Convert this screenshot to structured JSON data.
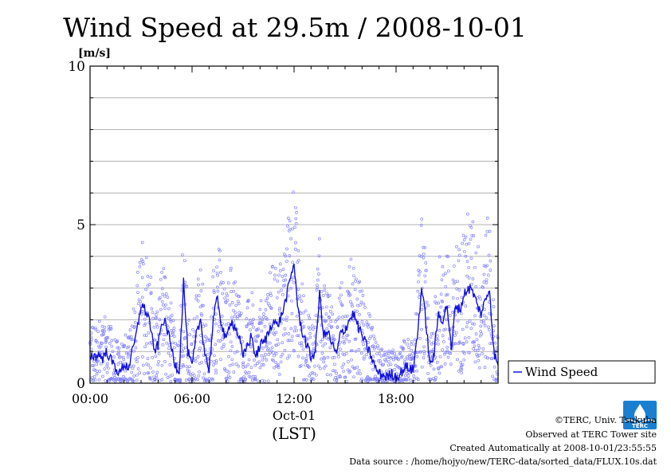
{
  "chart_data": {
    "type": "line",
    "title": "Wind Speed at 29.5m / 2008-10-01",
    "ylabel": "[m/s]",
    "xlabel_date": "Oct-01",
    "xlabel_unit": "(LST)",
    "ylim": [
      0,
      10
    ],
    "xlim_hours": [
      0,
      24
    ],
    "y_ticks": [
      0,
      5,
      10
    ],
    "y_tick_labels": [
      "0",
      "5",
      "10"
    ],
    "x_ticks_hours": [
      0,
      6,
      12,
      18
    ],
    "x_tick_labels": [
      "00:00",
      "06:00",
      "12:00",
      "18:00"
    ],
    "grid": "horizontal every 1 m/s",
    "legend_position": "right",
    "series": [
      {
        "name": "Wind Speed",
        "color": "#1010e0",
        "scatter_color": "#8080ff",
        "x_hours": [
          0.0,
          0.25,
          0.5,
          0.75,
          1.0,
          1.25,
          1.5,
          1.75,
          2.0,
          2.25,
          2.5,
          2.75,
          3.0,
          3.25,
          3.5,
          3.75,
          4.0,
          4.25,
          4.5,
          4.75,
          5.0,
          5.25,
          5.5,
          5.75,
          6.0,
          6.25,
          6.5,
          6.75,
          7.0,
          7.25,
          7.5,
          7.75,
          8.0,
          8.25,
          8.5,
          8.75,
          9.0,
          9.25,
          9.5,
          9.75,
          10.0,
          10.25,
          10.5,
          10.75,
          11.0,
          11.25,
          11.5,
          11.75,
          12.0,
          12.25,
          12.5,
          12.75,
          13.0,
          13.25,
          13.5,
          13.75,
          14.0,
          14.25,
          14.5,
          14.75,
          15.0,
          15.25,
          15.5,
          15.75,
          16.0,
          16.25,
          16.5,
          16.75,
          17.0,
          17.25,
          17.5,
          17.75,
          18.0,
          18.25,
          18.5,
          18.75,
          19.0,
          19.25,
          19.5,
          19.75,
          20.0,
          20.25,
          20.5,
          20.75,
          21.0,
          21.25,
          21.5,
          21.75,
          22.0,
          22.25,
          22.5,
          22.75,
          23.0,
          23.25,
          23.5,
          23.75,
          24.0
        ],
        "values": [
          0.9,
          0.85,
          0.9,
          0.8,
          1.0,
          0.7,
          0.5,
          0.3,
          0.6,
          0.5,
          1.0,
          1.6,
          2.5,
          2.3,
          2.0,
          1.0,
          1.2,
          2.0,
          1.8,
          1.2,
          0.6,
          0.4,
          3.2,
          1.0,
          0.5,
          1.5,
          2.0,
          1.0,
          0.4,
          2.0,
          2.7,
          1.8,
          1.3,
          2.0,
          1.8,
          1.5,
          0.8,
          1.2,
          1.5,
          0.8,
          1.2,
          1.3,
          1.6,
          2.0,
          1.8,
          2.1,
          2.6,
          3.2,
          3.8,
          2.2,
          1.6,
          1.2,
          0.8,
          1.0,
          2.8,
          1.5,
          1.6,
          1.2,
          0.9,
          1.6,
          1.7,
          2.0,
          2.2,
          1.8,
          1.5,
          1.2,
          0.9,
          0.5,
          0.3,
          0.25,
          0.2,
          0.3,
          0.2,
          0.3,
          0.5,
          0.5,
          0.4,
          1.5,
          3.0,
          2.0,
          0.5,
          1.0,
          2.2,
          2.0,
          2.5,
          1.0,
          2.5,
          2.3,
          2.8,
          3.0,
          2.9,
          2.5,
          2.2,
          2.6,
          3.0,
          1.0,
          0.5
        ]
      }
    ]
  },
  "footer": {
    "copyright": "©TERC, Univ. Tsukuba",
    "observed": "Observed at TERC Tower site",
    "created": "Created Automatically at 2008-10-01/23:55:55",
    "source": "Data source : /home/hojyo/new/TERC-data/sorted_data/FLUX.10s.dat",
    "logo_text": "TERC"
  }
}
